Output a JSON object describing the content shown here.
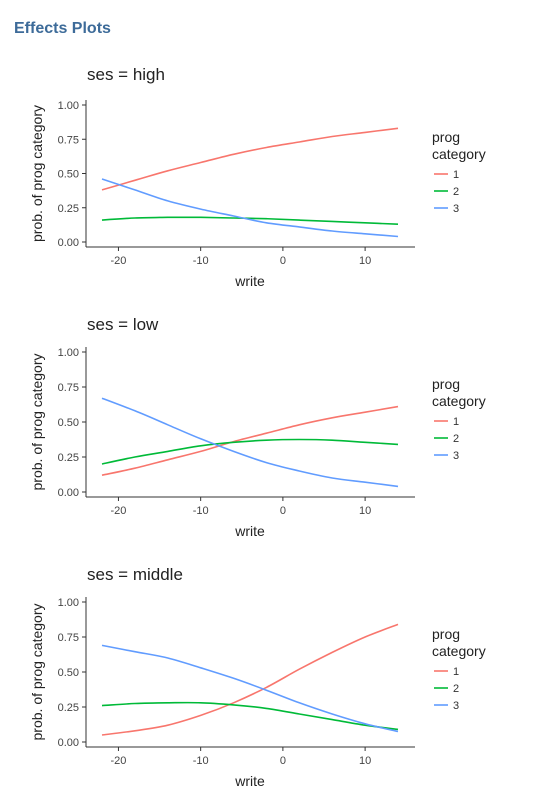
{
  "header": {
    "title": "Effects Plots"
  },
  "legend": {
    "title_line1": "prog",
    "title_line2": "category"
  },
  "series_colors": {
    "1": "#F8766D",
    "2": "#00BA38",
    "3": "#619CFF"
  },
  "chart_data": [
    {
      "type": "line",
      "title": "ses = high",
      "xlabel": "write",
      "ylabel": "prob. of prog category",
      "xlim": [
        -22,
        14
      ],
      "ylim": [
        0,
        1
      ],
      "xticks": [
        -20,
        -10,
        0,
        10
      ],
      "yticks": [
        "0.00",
        "0.25",
        "0.50",
        "0.75",
        "1.00"
      ],
      "legend_position": "right",
      "grid": false,
      "x": [
        -22,
        -18,
        -14,
        -10,
        -6,
        -2,
        2,
        6,
        10,
        14
      ],
      "series": [
        {
          "name": "1",
          "values": [
            0.38,
            0.45,
            0.52,
            0.58,
            0.64,
            0.69,
            0.73,
            0.77,
            0.8,
            0.83
          ]
        },
        {
          "name": "2",
          "values": [
            0.16,
            0.175,
            0.18,
            0.18,
            0.175,
            0.17,
            0.16,
            0.15,
            0.14,
            0.13
          ]
        },
        {
          "name": "3",
          "values": [
            0.46,
            0.38,
            0.3,
            0.24,
            0.19,
            0.14,
            0.11,
            0.08,
            0.06,
            0.04
          ]
        }
      ]
    },
    {
      "type": "line",
      "title": "ses = low",
      "xlabel": "write",
      "ylabel": "prob. of prog category",
      "xlim": [
        -22,
        14
      ],
      "ylim": [
        0,
        1
      ],
      "xticks": [
        -20,
        -10,
        0,
        10
      ],
      "yticks": [
        "0.00",
        "0.25",
        "0.50",
        "0.75",
        "1.00"
      ],
      "legend_position": "right",
      "grid": false,
      "x": [
        -22,
        -18,
        -14,
        -10,
        -6,
        -2,
        2,
        6,
        10,
        14
      ],
      "series": [
        {
          "name": "1",
          "values": [
            0.12,
            0.17,
            0.23,
            0.29,
            0.36,
            0.42,
            0.48,
            0.53,
            0.57,
            0.61
          ]
        },
        {
          "name": "2",
          "values": [
            0.2,
            0.25,
            0.29,
            0.33,
            0.355,
            0.37,
            0.375,
            0.37,
            0.355,
            0.34
          ]
        },
        {
          "name": "3",
          "values": [
            0.67,
            0.58,
            0.48,
            0.38,
            0.29,
            0.21,
            0.15,
            0.1,
            0.07,
            0.04
          ]
        }
      ]
    },
    {
      "type": "line",
      "title": "ses = middle",
      "xlabel": "write",
      "ylabel": "prob. of prog category",
      "xlim": [
        -22,
        14
      ],
      "ylim": [
        0,
        1
      ],
      "xticks": [
        -20,
        -10,
        0,
        10
      ],
      "yticks": [
        "0.00",
        "0.25",
        "0.50",
        "0.75",
        "1.00"
      ],
      "legend_position": "right",
      "grid": false,
      "x": [
        -22,
        -18,
        -14,
        -10,
        -6,
        -2,
        2,
        6,
        10,
        14
      ],
      "series": [
        {
          "name": "1",
          "values": [
            0.05,
            0.08,
            0.12,
            0.19,
            0.28,
            0.39,
            0.52,
            0.64,
            0.75,
            0.84
          ]
        },
        {
          "name": "2",
          "values": [
            0.26,
            0.275,
            0.28,
            0.28,
            0.265,
            0.24,
            0.2,
            0.16,
            0.12,
            0.09
          ]
        },
        {
          "name": "3",
          "values": [
            0.69,
            0.645,
            0.6,
            0.53,
            0.455,
            0.37,
            0.28,
            0.2,
            0.13,
            0.075
          ]
        }
      ]
    }
  ]
}
